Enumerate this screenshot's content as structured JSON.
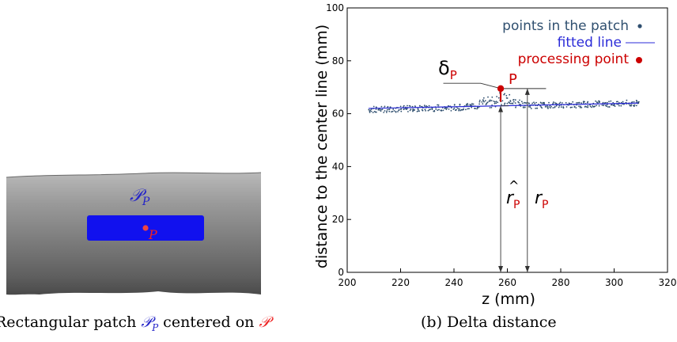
{
  "panel_a": {
    "patch_label": "𝒫",
    "patch_sub": "P",
    "point_label": "P",
    "caption": {
      "prefix": "Rectangular patch ",
      "sym": "𝒫",
      "sym_sub": "P",
      "mid": " centered on ",
      "end_sym": "𝒫"
    },
    "colors": {
      "patch": "#1111ee",
      "point": "#ee2222",
      "tube": "#8a8a8a"
    }
  },
  "panel_b": {
    "caption": "(b) Delta distance",
    "annotations": {
      "delta": "δ",
      "delta_sub": "P",
      "p_label": "P",
      "r_hat": "r",
      "r_hat_sub": "P",
      "r": "r",
      "r_sub": "P"
    },
    "legend": {
      "points": "points in the patch",
      "fitted": "fitted line",
      "processing": "processing point"
    },
    "colors": {
      "points": "#2f4f6f",
      "fitted": "#2b2bd8",
      "processing": "#cc0000"
    }
  },
  "chart_data": {
    "type": "scatter",
    "xlabel": "z (mm)",
    "ylabel": "distance to the center line (mm)",
    "xlim": [
      200,
      320
    ],
    "ylim": [
      0,
      100
    ],
    "xticks": [
      200,
      220,
      240,
      260,
      280,
      300,
      320
    ],
    "yticks": [
      0,
      20,
      40,
      60,
      80,
      100
    ],
    "grid": false,
    "legend_position": "top-right",
    "series": [
      {
        "name": "points in the patch",
        "z_range": [
          208,
          309
        ],
        "baseline_at_z208": 61.5,
        "baseline_at_z309": 64.0,
        "bump_peak_z": 257,
        "bump_peak_value": 68.5
      },
      {
        "name": "fitted line",
        "x": [
          208,
          309
        ],
        "y": [
          62.0,
          64.0
        ]
      },
      {
        "name": "processing point",
        "x": [
          257.5
        ],
        "y": [
          69.5
        ]
      }
    ],
    "reference_line_x": 267.5
  }
}
